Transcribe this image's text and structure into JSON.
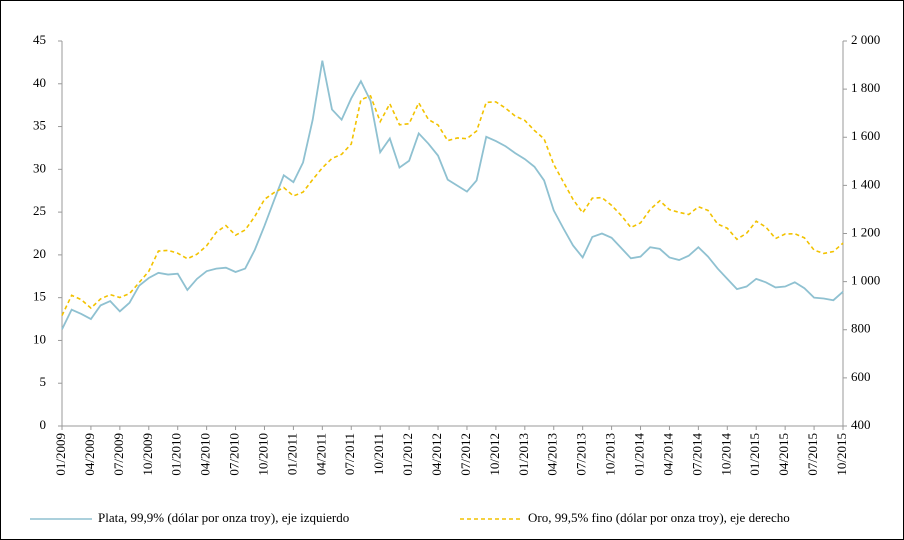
{
  "chart_data": {
    "type": "line",
    "categories": [
      "01/2009",
      null,
      null,
      "04/2009",
      null,
      null,
      "07/2009",
      null,
      null,
      "10/2009",
      null,
      null,
      "01/2010",
      null,
      null,
      "04/2010",
      null,
      null,
      "07/2010",
      null,
      null,
      "10/2010",
      null,
      null,
      "01/2011",
      null,
      null,
      "04/2011",
      null,
      null,
      "07/2011",
      null,
      null,
      "10/2011",
      null,
      null,
      "01/2012",
      null,
      null,
      "04/2012",
      null,
      null,
      "07/2012",
      null,
      null,
      "10/2012",
      null,
      null,
      "01/2013",
      null,
      null,
      "04/2013",
      null,
      null,
      "07/2013",
      null,
      null,
      "10/2013",
      null,
      null,
      "01/2014",
      null,
      null,
      "04/2014",
      null,
      null,
      "07/2014",
      null,
      null,
      "10/2014",
      null,
      null,
      "01/2015",
      null,
      null,
      "04/2015",
      null,
      null,
      "07/2015",
      null,
      null,
      "10/2015"
    ],
    "series": [
      {
        "name": "Plata, 99,9% (dólar por onza troy), eje izquierdo",
        "color": "#8fc1d1",
        "dashed": false,
        "values": [
          11.3,
          13.6,
          13.1,
          12.5,
          14.1,
          14.6,
          13.4,
          14.4,
          16.4,
          17.3,
          17.9,
          17.7,
          17.8,
          15.9,
          17.2,
          18.1,
          18.4,
          18.5,
          18.0,
          18.4,
          20.6,
          23.4,
          26.4,
          29.3,
          28.5,
          30.8,
          35.8,
          42.7,
          37.0,
          35.8,
          38.3,
          40.3,
          38.0,
          32.0,
          33.6,
          30.2,
          31.0,
          34.2,
          33.0,
          31.6,
          28.8,
          28.1,
          27.4,
          28.7,
          33.8,
          33.3,
          32.7,
          31.9,
          31.2,
          30.3,
          28.7,
          25.2,
          23.1,
          21.1,
          19.7,
          22.1,
          22.5,
          22.0,
          20.8,
          19.6,
          19.8,
          20.9,
          20.7,
          19.7,
          19.4,
          19.9,
          20.9,
          19.8,
          18.4,
          17.2,
          16.0,
          16.3,
          17.2,
          16.8,
          16.2,
          16.3,
          16.8,
          16.1,
          15.0,
          14.9,
          14.7,
          15.7
        ]
      },
      {
        "name": "Oro, 99,5% fino (dólar por onza troy), eje derecho",
        "color": "#f2c200",
        "dashed": true,
        "axis": "y2",
        "values": [
          859,
          943,
          925,
          890,
          928,
          946,
          934,
          950,
          996,
          1043,
          1127,
          1130,
          1118,
          1095,
          1114,
          1149,
          1205,
          1233,
          1193,
          1215,
          1271,
          1342,
          1370,
          1391,
          1356,
          1372,
          1424,
          1473,
          1512,
          1529,
          1572,
          1756,
          1772,
          1665,
          1739,
          1652,
          1656,
          1743,
          1674,
          1651,
          1586,
          1597,
          1594,
          1626,
          1745,
          1747,
          1721,
          1688,
          1670,
          1628,
          1593,
          1487,
          1414,
          1342,
          1286,
          1347,
          1349,
          1317,
          1275,
          1225,
          1244,
          1300,
          1336,
          1299,
          1288,
          1279,
          1311,
          1296,
          1239,
          1222,
          1176,
          1201,
          1251,
          1227,
          1179,
          1198,
          1199,
          1182,
          1131,
          1117,
          1125,
          1160
        ]
      }
    ],
    "ylim": [
      0,
      45
    ],
    "yticks": [
      0,
      5,
      10,
      15,
      20,
      25,
      30,
      35,
      40,
      45
    ],
    "y2lim": [
      400,
      2000
    ],
    "y2ticks": [
      400,
      600,
      800,
      {
        "value": 1000,
        "label": "1 000"
      },
      {
        "value": 1200,
        "label": "1 200"
      },
      {
        "value": 1400,
        "label": "1 400"
      },
      {
        "value": 1600,
        "label": "1 600"
      },
      {
        "value": 1800,
        "label": "1 800"
      },
      {
        "value": 2000,
        "label": "2 000"
      }
    ],
    "legend": "bottom"
  }
}
